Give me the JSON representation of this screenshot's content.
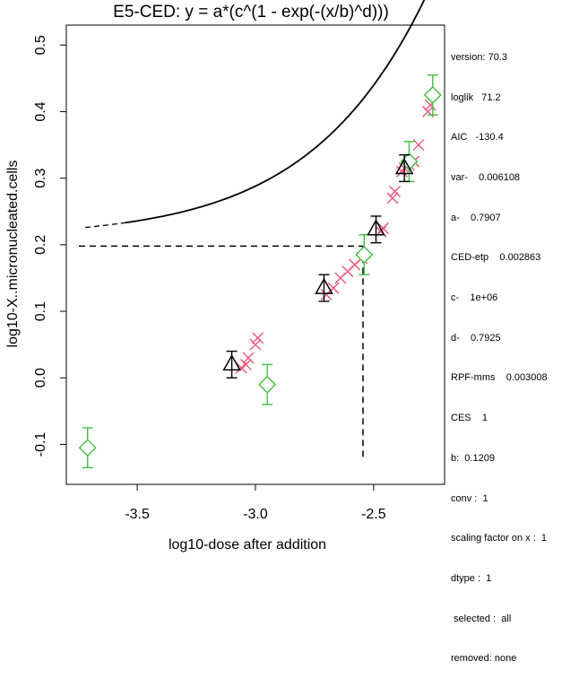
{
  "chart_data": {
    "type": "scatter",
    "title": "E5-CED: y = a*(c^(1 - exp(-(x/b)^d)))",
    "xlabel": "log10-dose after addition",
    "ylabel": "log10-X..micronucleated.cells",
    "xlim": [
      -3.8,
      -2.2
    ],
    "ylim": [
      -0.16,
      0.53
    ],
    "x_ticks": [
      -3.5,
      -3.0,
      -2.5
    ],
    "x_tick_labels": [
      "-3.5",
      "-3.0",
      "-2.5"
    ],
    "y_ticks": [
      -0.1,
      0.0,
      0.1,
      0.2,
      0.3,
      0.4,
      0.5
    ],
    "y_tick_labels": [
      "-0.1",
      "0.0",
      "0.1",
      "0.2",
      "0.3",
      "0.4",
      "0.5"
    ],
    "params": {
      "a": 0.7907,
      "b": 0.1209,
      "c": 1000000,
      "d": 0.7925,
      "dose_offset": 0.003008
    },
    "ced_reference": {
      "ced_x": -2.545,
      "ces_y": 0.198
    },
    "colors": {
      "selected_points": "#e8557a",
      "green_points": "#3fbf3f",
      "means": "#000000",
      "curve": "#000000"
    },
    "series": [
      {
        "name": "selected-data-crosses",
        "marker": "x",
        "points": [
          {
            "x": -3.06,
            "y": 0.015
          },
          {
            "x": -3.04,
            "y": 0.02
          },
          {
            "x": -3.03,
            "y": 0.03
          },
          {
            "x": -3.0,
            "y": 0.05
          },
          {
            "x": -2.99,
            "y": 0.06
          },
          {
            "x": -2.7,
            "y": 0.125
          },
          {
            "x": -2.67,
            "y": 0.135
          },
          {
            "x": -2.64,
            "y": 0.15
          },
          {
            "x": -2.61,
            "y": 0.16
          },
          {
            "x": -2.58,
            "y": 0.17
          },
          {
            "x": -2.55,
            "y": 0.18
          },
          {
            "x": -2.47,
            "y": 0.22
          },
          {
            "x": -2.46,
            "y": 0.225
          },
          {
            "x": -2.42,
            "y": 0.27
          },
          {
            "x": -2.41,
            "y": 0.28
          },
          {
            "x": -2.38,
            "y": 0.31
          },
          {
            "x": -2.37,
            "y": 0.315
          },
          {
            "x": -2.35,
            "y": 0.32
          },
          {
            "x": -2.33,
            "y": 0.325
          },
          {
            "x": -2.31,
            "y": 0.35
          },
          {
            "x": -2.27,
            "y": 0.4
          },
          {
            "x": -2.26,
            "y": 0.41
          }
        ]
      },
      {
        "name": "green-diamonds",
        "marker": "diamond",
        "points": [
          {
            "x": -3.71,
            "y": -0.105,
            "err": 0.03
          },
          {
            "x": -2.95,
            "y": -0.01,
            "err": 0.03
          },
          {
            "x": -2.54,
            "y": 0.185,
            "err": 0.03
          },
          {
            "x": -2.35,
            "y": 0.325,
            "err": 0.03
          },
          {
            "x": -2.25,
            "y": 0.425,
            "err": 0.03
          }
        ]
      },
      {
        "name": "group-means-triangles",
        "marker": "triangle",
        "points": [
          {
            "x": -3.1,
            "y": 0.02,
            "err": 0.02
          },
          {
            "x": -2.71,
            "y": 0.135,
            "err": 0.02
          },
          {
            "x": -2.49,
            "y": 0.223,
            "err": 0.02
          },
          {
            "x": -2.37,
            "y": 0.315,
            "err": 0.02
          }
        ]
      }
    ]
  },
  "info_panel": [
    "version: 70.3",
    "loglik   71.2",
    "AIC   -130.4",
    "var-    0.006108",
    "a-    0.7907",
    "CED-etp    0.002863",
    "c-    1e+06",
    "d-    0.7925",
    "RPF-mms    0.003008",
    "CES    1",
    "b:  0.1209",
    "conv :  1",
    "scaling factor on x :  1",
    "dtype :  1",
    " selected :  all",
    "removed: none"
  ]
}
